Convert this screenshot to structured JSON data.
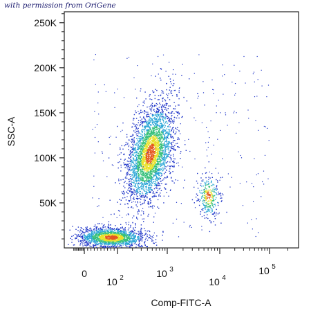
{
  "watermark": "with permission from OriGene",
  "chart_data": {
    "type": "scatter",
    "title": "",
    "xlabel": "Comp-FITC-A",
    "ylabel": "SSC-A",
    "x_scale": "biexponential",
    "x_ticks": [
      {
        "value": 0,
        "base": "0",
        "exp": ""
      },
      {
        "value": 100,
        "base": "10",
        "exp": "2"
      },
      {
        "value": 1000,
        "base": "10",
        "exp": "3"
      },
      {
        "value": 10000,
        "base": "10",
        "exp": "4"
      },
      {
        "value": 100000,
        "base": "10",
        "exp": "5"
      }
    ],
    "y_ticks": [
      {
        "value": 50000,
        "label": "50K"
      },
      {
        "value": 100000,
        "label": "100K"
      },
      {
        "value": 150000,
        "label": "150K"
      },
      {
        "value": 200000,
        "label": "200K"
      },
      {
        "value": 250000,
        "label": "250K"
      }
    ],
    "ylim": [
      0,
      262144
    ],
    "density_colors": [
      "#1f35c8",
      "#2aa6d6",
      "#36c07a",
      "#e8e12a",
      "#e4561f"
    ],
    "populations": [
      {
        "name": "low",
        "x_center": 80,
        "y_center": 12000,
        "count": 1700
      },
      {
        "name": "main",
        "x_center": 450,
        "y_center": 105000,
        "count": 3200
      },
      {
        "name": "high",
        "x_center": 6000,
        "y_center": 58000,
        "count": 300
      }
    ]
  }
}
